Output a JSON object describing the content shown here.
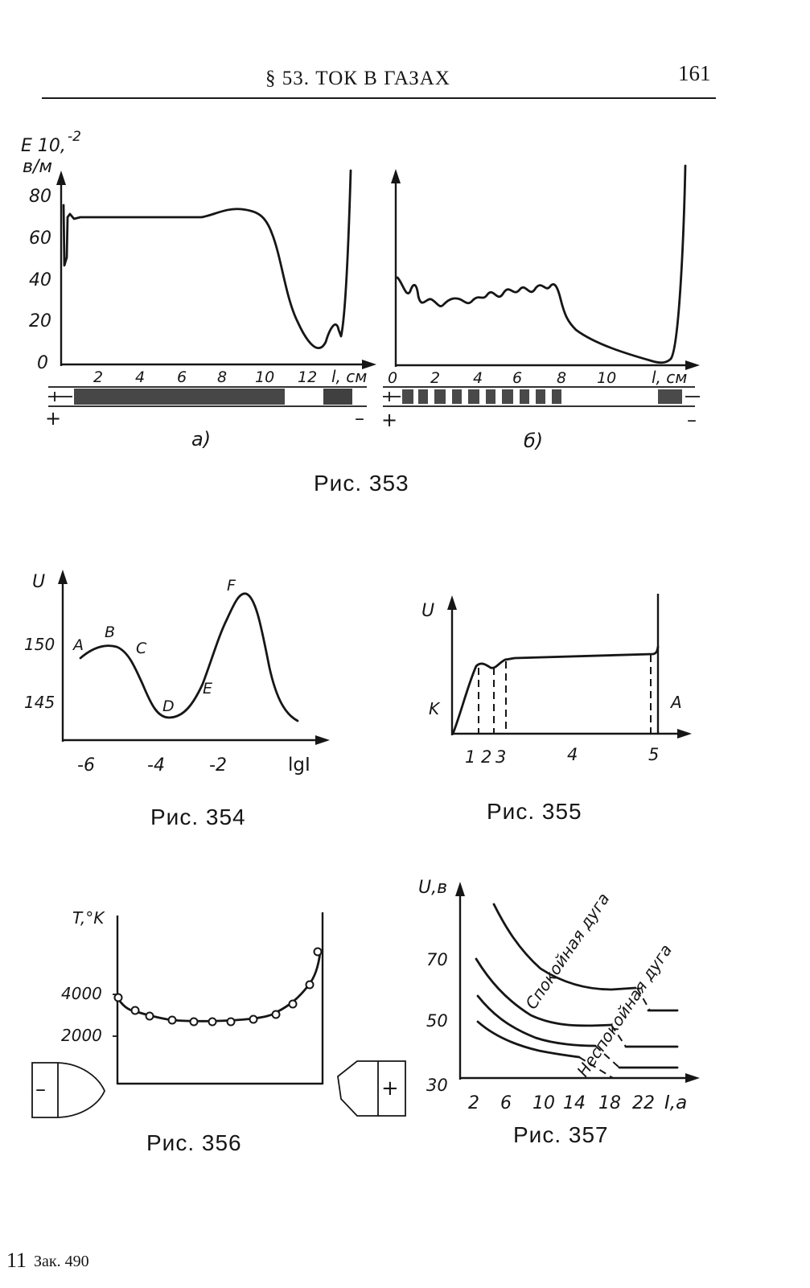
{
  "header": {
    "title": "§ 53. ТОК В ГАЗАХ",
    "page_number": "161"
  },
  "footer": {
    "sheet_number": "11",
    "order": "Зак. 490"
  },
  "figures": {
    "fig353": {
      "caption": "Рис. 353",
      "a": {
        "y_label_top": "E 10,",
        "y_label_exp": "-2",
        "y_label_unit": "в/м",
        "y_ticks": [
          "80",
          "60",
          "40",
          "20",
          "0"
        ],
        "x_ticks": [
          "2",
          "4",
          "6",
          "8",
          "10",
          "12"
        ],
        "x_label": "l, см",
        "sublabel": "а)",
        "plus": "+",
        "minus": "–"
      },
      "b": {
        "x_ticks": [
          "0",
          "2",
          "4",
          "6",
          "8",
          "10"
        ],
        "x_label": "l, см",
        "sublabel": "б)",
        "plus": "+",
        "minus": "–"
      }
    },
    "fig354": {
      "caption": "Рис. 354",
      "y_label": "U",
      "y_ticks": [
        "150",
        "145"
      ],
      "x_ticks": [
        "-6",
        "-4",
        "-2"
      ],
      "x_label": "lgI",
      "point_labels": [
        "A",
        "B",
        "C",
        "D",
        "E",
        "F"
      ]
    },
    "fig355": {
      "caption": "Рис. 355",
      "y_label": "U",
      "left_label": "K",
      "right_label": "A",
      "x_ticks": [
        "1",
        "2",
        "3",
        "4",
        "5"
      ]
    },
    "fig356": {
      "caption": "Рис. 356",
      "y_label": "T,°K",
      "y_ticks": [
        "4000",
        "2000"
      ],
      "cathode_sign": "–",
      "anode_sign": "+"
    },
    "fig357": {
      "caption": "Рис. 357",
      "y_label": "U,в",
      "y_ticks": [
        "70",
        "50",
        "30"
      ],
      "x_ticks": [
        "2",
        "6",
        "10",
        "14",
        "18",
        "22"
      ],
      "x_label": "I,а",
      "curve_label_quiet": "Спокойная дуга",
      "curve_label_unstable": "Неспокойная дуга"
    }
  }
}
